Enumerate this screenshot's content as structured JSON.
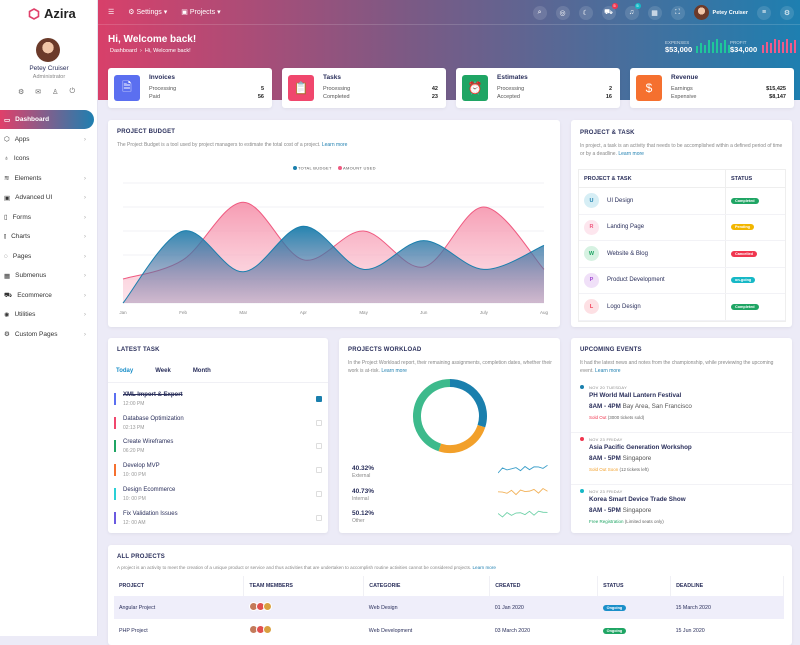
{
  "app": {
    "name": "Azira"
  },
  "user": {
    "name": "Petey Cruiser",
    "role": "Administrator"
  },
  "sidebar": {
    "items": [
      {
        "label": "Dashboard",
        "icon": "monitor-icon",
        "active": true
      },
      {
        "label": "Apps",
        "icon": "cube-icon"
      },
      {
        "label": "Icons",
        "icon": "award-icon"
      },
      {
        "label": "Elements",
        "icon": "layers-icon"
      },
      {
        "label": "Advanced UI",
        "icon": "box-icon"
      },
      {
        "label": "Forms",
        "icon": "file-icon"
      },
      {
        "label": "Charts",
        "icon": "bar-chart-icon"
      },
      {
        "label": "Pages",
        "icon": "compass-icon"
      },
      {
        "label": "Submenus",
        "icon": "grid-icon"
      },
      {
        "label": "Ecommerce",
        "icon": "cart-icon"
      },
      {
        "label": "Utilities",
        "icon": "settings-icon"
      },
      {
        "label": "Custom Pages",
        "icon": "gear-icon"
      }
    ]
  },
  "topbar": {
    "menus": [
      "Settings",
      "Projects"
    ],
    "user_name": "Petey Cruiser",
    "cart_badge": "5",
    "bell_badge": "5"
  },
  "welcome": {
    "title": "Hi, Welcome back!",
    "breadcrumb": [
      "Dashboard",
      "Hi, Welcome back!"
    ],
    "expenses_label": "EXPENSES",
    "expenses": "$53,000",
    "profit_label": "PROFIT",
    "profit": "$34,000",
    "expenses_bars": [
      5,
      7,
      6,
      9,
      8,
      10,
      7,
      9,
      6
    ],
    "profit_bars": [
      6,
      8,
      7,
      10,
      9,
      8,
      10,
      7,
      9
    ]
  },
  "stats": [
    {
      "title": "Invoices",
      "color": "#5b6ff0",
      "icon": "invoice-icon",
      "rows": [
        [
          "Processing",
          "5"
        ],
        [
          "Paid",
          "56"
        ]
      ]
    },
    {
      "title": "Tasks",
      "color": "#f0476d",
      "icon": "clipboard-icon",
      "rows": [
        [
          "Processing",
          "42"
        ],
        [
          "Completed",
          "23"
        ]
      ]
    },
    {
      "title": "Estimates",
      "color": "#1fa564",
      "icon": "alarm-clock-icon",
      "rows": [
        [
          "Processing",
          "2"
        ],
        [
          "Accepted",
          "16"
        ]
      ]
    },
    {
      "title": "Revenue",
      "color": "#f5702f",
      "icon": "money-bag-icon",
      "rows": [
        [
          "Earnings",
          "$15,425"
        ],
        [
          "Expensive",
          "$8,147"
        ]
      ]
    }
  ],
  "budget": {
    "title": "PROJECT BUDGET",
    "desc": "The Project Budget is a tool used by project managers to estimate the total cost of a project.",
    "learn": "Learn more"
  },
  "chart_data": {
    "type": "area",
    "categories": [
      "Jan",
      "Feb",
      "Mar",
      "Apr",
      "May",
      "Jun",
      "July",
      "Aug"
    ],
    "series": [
      {
        "name": "TOTAL BUDGET",
        "color": "#1a7fad",
        "values": [
          0,
          30,
          13,
          32,
          14,
          26,
          14,
          24
        ]
      },
      {
        "name": "AMOUNT USED",
        "color": "#ef5a80",
        "values": [
          10,
          18,
          42,
          18,
          30,
          15,
          40,
          14
        ]
      }
    ],
    "ylim": [
      0,
      50
    ],
    "grid": true,
    "legend": "top-center"
  },
  "ptask": {
    "title": "PROJECT & TASK",
    "desc": "In project, a task is an activity that needs to be accomplished within a defined period of time or by a deadline.",
    "learn": "Learn more",
    "headers": [
      "PROJECT & TASK",
      "STATUS"
    ],
    "rows": [
      {
        "initial": "U",
        "name": "UI Design",
        "status": "Completed",
        "bg": "#d6eef5",
        "fg": "#1a7fad",
        "sc": "#1fa564"
      },
      {
        "initial": "R",
        "name": "Landing Page",
        "status": "Pending",
        "bg": "#fde6ee",
        "fg": "#ef5a80",
        "sc": "#f2b600"
      },
      {
        "initial": "W",
        "name": "Website & Blog",
        "status": "Cancelled",
        "bg": "#d6f2e2",
        "fg": "#1fa564",
        "sc": "#f0364f"
      },
      {
        "initial": "P",
        "name": "Product Development",
        "status": "on-going",
        "bg": "#f0e0f8",
        "fg": "#a14bd0",
        "sc": "#16b8c6"
      },
      {
        "initial": "L",
        "name": "Logo Design",
        "status": "Completed",
        "bg": "#fde0e4",
        "fg": "#f0364f",
        "sc": "#1fa564"
      }
    ]
  },
  "latest": {
    "title": "LATEST TASK",
    "tabs": [
      "Today",
      "Week",
      "Month"
    ],
    "items": [
      {
        "name": "XML Import & Export",
        "time": "12:00 PM",
        "color": "#5b6ff0",
        "done": true
      },
      {
        "name": "Database Optimization",
        "time": "02:13 PM",
        "color": "#f0476d"
      },
      {
        "name": "Create Wireframes",
        "time": "06:20 PM",
        "color": "#1fa564"
      },
      {
        "name": "Develop MVP",
        "time": "10: 00 PM",
        "color": "#f5702f"
      },
      {
        "name": "Design Ecommerce",
        "time": "10: 00 PM",
        "color": "#2ad0d6"
      },
      {
        "name": "Fix Validation Issues",
        "time": "12: 00 AM",
        "color": "#6a5ae0"
      }
    ]
  },
  "workload": {
    "title": "PROJECTS WORKLOAD",
    "desc": "In the Project Workload report, their remaining assignments, completion dates, whether their work is at-risk.",
    "learn": "Learn more",
    "donut": [
      {
        "value": 30,
        "color": "#1a7fad"
      },
      {
        "value": 25,
        "color": "#f2a02a"
      },
      {
        "value": 45,
        "color": "#3dba8c"
      }
    ],
    "stats": [
      {
        "pct": "40.32%",
        "label": "External",
        "color": "#3a9ec9"
      },
      {
        "pct": "40.73%",
        "label": "Internal",
        "color": "#f2b25a"
      },
      {
        "pct": "50.12%",
        "label": "Other",
        "color": "#6fd1a8"
      }
    ]
  },
  "events": {
    "title": "UPCOMING EVENTS",
    "desc": "It had the latest news and notes from the championship, while previewing the upcoming event.",
    "learn": "Learn more",
    "items": [
      {
        "date": "NOV 20 TUESDAY",
        "name": "PH World Mall Lantern Festival",
        "time": "8AM - 4PM",
        "place": "Bay Area, San Francisco",
        "status": "Sold Out",
        "note": "(3000 tickets sold)",
        "dot": "#1a7fad",
        "sc": "#f0364f"
      },
      {
        "date": "NOV 23 FRIDAY",
        "name": "Asia Pacific Generation Workshop",
        "time": "8AM - 5PM",
        "place": "Singapore",
        "status": "Sold Out Soon",
        "note": "(12 tickets left)",
        "dot": "#f0364f",
        "sc": "#f2a02a"
      },
      {
        "date": "NOV 23 FRIDAY",
        "name": "Korea Smart Device Trade Show",
        "time": "8AM - 5PM",
        "place": "Singapore",
        "status": "Free Registration",
        "note": "(Limited seats only)",
        "dot": "#16b8c6",
        "sc": "#1fa564"
      }
    ]
  },
  "projects": {
    "title": "ALL PROJECTS",
    "desc": "A project is an activity to meet the creation of a unique product or service and thus activities that are undertaken to accomplish routine activities cannot be considered projects.",
    "learn": "Learn more",
    "headers": [
      "PROJECT",
      "TEAM MEMBERS",
      "CATEGORIE",
      "CREATED",
      "STATUS",
      "DEADLINE"
    ],
    "rows": [
      {
        "project": "Angular Project",
        "category": "Web Design",
        "created": "01 Jan 2020",
        "status": "Ongoing",
        "sc": "#1a8fc9",
        "deadline": "15 March 2020"
      },
      {
        "project": "PHP Project",
        "category": "Web Development",
        "created": "03 March 2020",
        "status": "Ongoing",
        "sc": "#1fa564",
        "deadline": "15 Jun 2020"
      }
    ]
  }
}
